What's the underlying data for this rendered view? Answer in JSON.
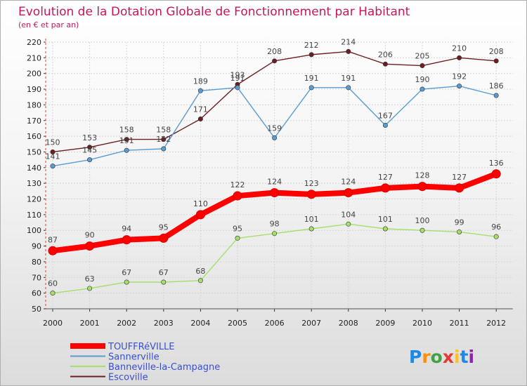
{
  "chart_data": {
    "type": "line",
    "title": "Evolution de la Dotation Globale de Fonctionnement par Habitant",
    "subtitle": "(en € et par an)",
    "xlabel": "",
    "ylabel": "",
    "ylim": [
      50,
      220
    ],
    "ytick_step": 10,
    "grid": true,
    "categories": [
      "2000",
      "2001",
      "2002",
      "2003",
      "2004",
      "2005",
      "2006",
      "2007",
      "2008",
      "2009",
      "2010",
      "2011",
      "2012"
    ],
    "series": [
      {
        "name": "Escoville",
        "color": "#6b1f22",
        "values": [
          150,
          153,
          158,
          158,
          171,
          193,
          208,
          212,
          214,
          206,
          205,
          210,
          208
        ]
      },
      {
        "name": "Sannerville",
        "color": "#5b9bd0",
        "values": [
          141,
          145,
          151,
          152,
          189,
          191,
          159,
          191,
          191,
          167,
          190,
          192,
          186
        ]
      },
      {
        "name": "Banneville-la-Campagne",
        "color": "#a6de6c",
        "values": [
          60,
          63,
          67,
          67,
          68,
          95,
          98,
          101,
          104,
          101,
          100,
          99,
          96
        ]
      },
      {
        "name": "TOUFFRéVILLE",
        "color": "#ff0000",
        "values": [
          87,
          90,
          94,
          95,
          110,
          122,
          124,
          123,
          124,
          127,
          128,
          127,
          136
        ]
      }
    ],
    "legend": [
      "TOUFFRéVILLE",
      "Sannerville",
      "Banneville-la-Campagne",
      "Escoville"
    ],
    "legend_position": "bottom-left"
  },
  "logo": {
    "text": "Proxiti"
  }
}
